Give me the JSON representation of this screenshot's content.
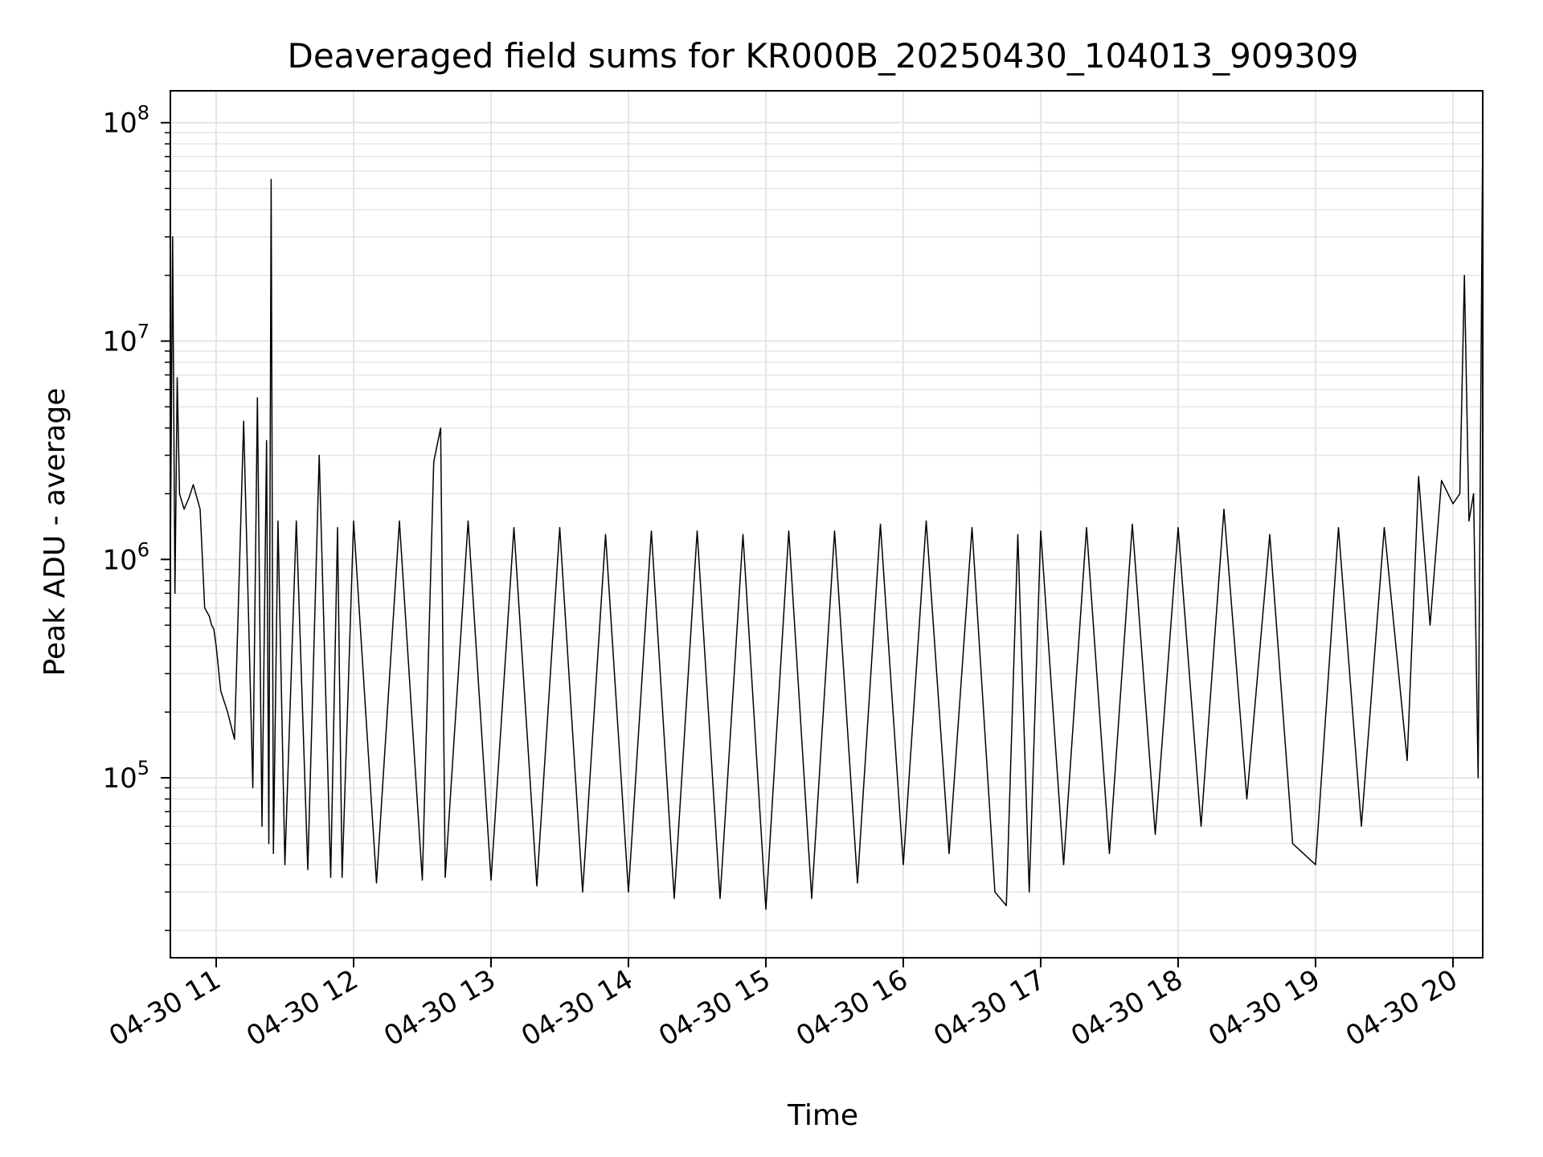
{
  "chart_data": {
    "type": "line",
    "title": "Deaveraged field sums for KR000B_20250430_104013_909309",
    "xlabel": "Time",
    "ylabel": "Peak ADU - average",
    "yscale": "log",
    "ylim": [
      15000,
      140000000
    ],
    "xlim": [
      "2025-04-30 10:40",
      "2025-04-30 20:13"
    ],
    "grid": true,
    "line_color": "#000000",
    "grid_color": "#e5e5e5",
    "x_ticks": [
      {
        "value": "2025-04-30 11:00",
        "label": "04-30 11"
      },
      {
        "value": "2025-04-30 12:00",
        "label": "04-30 12"
      },
      {
        "value": "2025-04-30 13:00",
        "label": "04-30 13"
      },
      {
        "value": "2025-04-30 14:00",
        "label": "04-30 14"
      },
      {
        "value": "2025-04-30 15:00",
        "label": "04-30 15"
      },
      {
        "value": "2025-04-30 16:00",
        "label": "04-30 16"
      },
      {
        "value": "2025-04-30 17:00",
        "label": "04-30 17"
      },
      {
        "value": "2025-04-30 18:00",
        "label": "04-30 18"
      },
      {
        "value": "2025-04-30 19:00",
        "label": "04-30 19"
      },
      {
        "value": "2025-04-30 20:00",
        "label": "04-30 20"
      }
    ],
    "y_ticks": [
      {
        "value": 100000,
        "base": "10",
        "exp": "5"
      },
      {
        "value": 1000000,
        "base": "10",
        "exp": "6"
      },
      {
        "value": 10000000,
        "base": "10",
        "exp": "7"
      },
      {
        "value": 100000000,
        "base": "10",
        "exp": "8"
      }
    ],
    "series": [
      {
        "x": [
          "10:40",
          "10:41",
          "10:42",
          "10:43",
          "10:44",
          "10:46",
          "10:48",
          "10:50",
          "10:53",
          "10:55",
          "10:57",
          "10:58",
          "10:59",
          "11:00",
          "11:02",
          "11:05",
          "11:08",
          "11:12",
          "11:16",
          "11:18",
          "11:20",
          "11:22",
          "11:23",
          "11:24",
          "11:25",
          "11:27",
          "11:30",
          "11:35",
          "11:40",
          "11:45",
          "11:50",
          "11:53",
          "11:55",
          "12:00",
          "12:10",
          "12:20",
          "12:30",
          "12:35",
          "12:38",
          "12:40",
          "12:50",
          "13:00",
          "13:10",
          "13:20",
          "13:30",
          "13:40",
          "13:50",
          "14:00",
          "14:10",
          "14:20",
          "14:30",
          "14:40",
          "14:50",
          "15:00",
          "15:10",
          "15:20",
          "15:30",
          "15:40",
          "15:50",
          "16:00",
          "16:10",
          "16:20",
          "16:30",
          "16:40",
          "16:45",
          "16:50",
          "16:55",
          "17:00",
          "17:10",
          "17:20",
          "17:30",
          "17:40",
          "17:50",
          "18:00",
          "18:10",
          "18:20",
          "18:30",
          "18:40",
          "18:50",
          "19:00",
          "19:10",
          "19:20",
          "19:30",
          "19:40",
          "19:45",
          "19:50",
          "19:55",
          "20:00",
          "20:03",
          "20:05",
          "20:07",
          "20:09",
          "20:11",
          "20:13"
        ],
        "y": [
          1000000,
          30000000,
          700000,
          6800000,
          2000000,
          1700000,
          1900000,
          2200000,
          1700000,
          600000,
          550000,
          500000,
          480000,
          400000,
          250000,
          200000,
          150000,
          4300000,
          90000,
          5500000,
          60000,
          3500000,
          50000,
          55000000,
          45000,
          1500000,
          40000,
          1500000,
          38000,
          3000000,
          35000,
          1400000,
          35000,
          1500000,
          33000,
          1500000,
          34000,
          2800000,
          4000000,
          35000,
          1500000,
          34000,
          1400000,
          32000,
          1400000,
          30000,
          1300000,
          30000,
          1350000,
          28000,
          1350000,
          28000,
          1300000,
          25000,
          1350000,
          28000,
          1350000,
          33000,
          1450000,
          40000,
          1500000,
          45000,
          1400000,
          30000,
          26000,
          1300000,
          30000,
          1350000,
          40000,
          1400000,
          45000,
          1450000,
          55000,
          1400000,
          60000,
          1700000,
          80000,
          1300000,
          50000,
          40000,
          1400000,
          60000,
          1400000,
          120000,
          2400000,
          500000,
          2300000,
          1800000,
          2000000,
          20000000,
          1500000,
          2000000,
          100000,
          95000000
        ]
      }
    ]
  }
}
